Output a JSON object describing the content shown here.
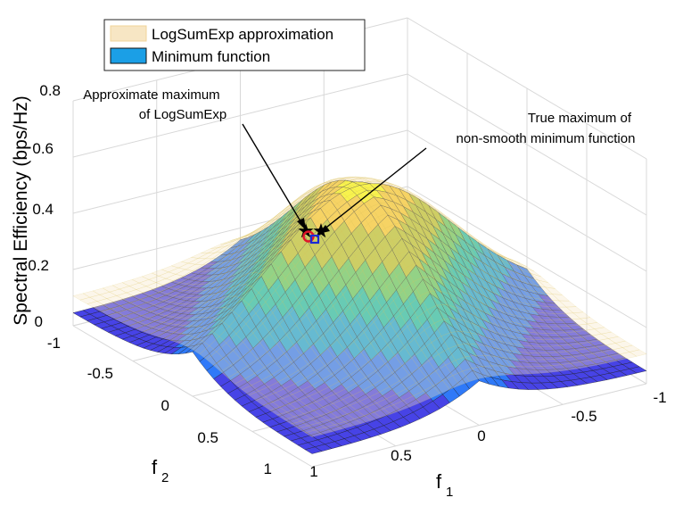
{
  "chart_data": {
    "type": "surface",
    "zlabel": "Spectral Efficiency (bps/Hz)",
    "xlabel": "f",
    "xlabel_sub": "1",
    "ylabel": "f",
    "ylabel_sub": "2",
    "xlim": [
      -1,
      1
    ],
    "ylim": [
      -1,
      1
    ],
    "zlim": [
      0,
      0.8
    ],
    "x_ticks": [
      "1",
      "0.5",
      "0",
      "-0.5",
      "-1"
    ],
    "y_ticks": [
      "-1",
      "-0.5",
      "0",
      "0.5",
      "1"
    ],
    "z_ticks": [
      "0",
      "0.2",
      "0.4",
      "0.6",
      "0.8"
    ],
    "grid": true,
    "legend_position": "top-left",
    "series": [
      {
        "name": "LogSumExp approximation",
        "style": "mesh",
        "color": "#f7e6c4"
      },
      {
        "name": "Minimum function",
        "style": "surface",
        "color": "#1b9fe6",
        "colormap": "parula"
      }
    ],
    "annotations": [
      {
        "text_lines": [
          "Approximate maximum",
          "of LogSumExp"
        ],
        "marker": "red circle",
        "marker_color": "#e0152a"
      },
      {
        "text_lines": [
          "True maximum of",
          "non-smooth minimum function"
        ],
        "marker": "blue square",
        "marker_color": "#1a2bd6"
      }
    ]
  },
  "colors": {
    "parula": [
      "#3e26a8",
      "#4743e6",
      "#2f79f8",
      "#1aa3d9",
      "#1cbdac",
      "#5ec866",
      "#b7c233",
      "#f6c932",
      "#f9fb0e"
    ]
  }
}
